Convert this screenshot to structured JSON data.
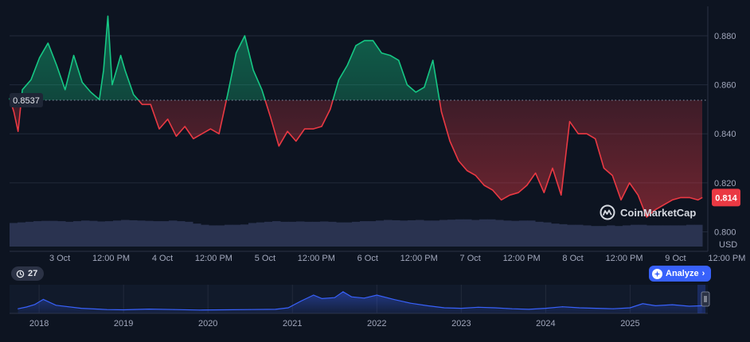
{
  "chart_data": {
    "type": "line",
    "main": {
      "x_ticks": [
        "3 Oct",
        "12:00 PM",
        "4 Oct",
        "12:00 PM",
        "5 Oct",
        "12:00 PM",
        "6 Oct",
        "12:00 PM",
        "7 Oct",
        "12:00 PM",
        "8 Oct",
        "12:00 PM",
        "9 Oct",
        "12:00 PM"
      ],
      "y_ticks": [
        "0.880",
        "0.860",
        "0.840",
        "0.820",
        "0.800"
      ],
      "y_unit": "USD",
      "ylim": [
        0.794,
        0.892
      ],
      "reference_price": 0.8537,
      "reference_label": "0.8537",
      "current_price_label": "0.814",
      "colors": {
        "up": "#16c784",
        "down": "#ea3943",
        "volume": "#2a3350",
        "background": "#0d1421"
      },
      "x": [
        "2 Oct 21:00",
        "2 Oct 22:00",
        "2 Oct 23:00",
        "3 Oct 00:00",
        "3 Oct 02:00",
        "3 Oct 04:00",
        "3 Oct 06:00",
        "3 Oct 08:00",
        "3 Oct 10:00",
        "3 Oct 12:00",
        "3 Oct 14:00",
        "3 Oct 16:00",
        "3 Oct 18:00",
        "3 Oct 19:00",
        "3 Oct 20:00",
        "3 Oct 21:00",
        "3 Oct 22:00",
        "3 Oct 23:00",
        "4 Oct 00:00",
        "4 Oct 02:00",
        "4 Oct 04:00",
        "4 Oct 06:00",
        "4 Oct 08:00",
        "4 Oct 10:00",
        "4 Oct 12:00",
        "4 Oct 14:00",
        "4 Oct 16:00",
        "4 Oct 18:00",
        "4 Oct 20:00",
        "4 Oct 22:00",
        "5 Oct 00:00",
        "5 Oct 02:00",
        "5 Oct 04:00",
        "5 Oct 06:00",
        "5 Oct 08:00",
        "5 Oct 10:00",
        "5 Oct 12:00",
        "5 Oct 14:00",
        "5 Oct 16:00",
        "5 Oct 18:00",
        "5 Oct 20:00",
        "5 Oct 22:00",
        "6 Oct 00:00",
        "6 Oct 02:00",
        "6 Oct 04:00",
        "6 Oct 06:00",
        "6 Oct 08:00",
        "6 Oct 10:00",
        "6 Oct 12:00",
        "6 Oct 14:00",
        "6 Oct 16:00",
        "6 Oct 18:00",
        "6 Oct 20:00",
        "6 Oct 22:00",
        "7 Oct 00:00",
        "7 Oct 02:00",
        "7 Oct 04:00",
        "7 Oct 06:00",
        "7 Oct 08:00",
        "7 Oct 10:00",
        "7 Oct 12:00",
        "7 Oct 14:00",
        "7 Oct 16:00",
        "7 Oct 18:00",
        "7 Oct 20:00",
        "7 Oct 22:00",
        "8 Oct 00:00",
        "8 Oct 02:00",
        "8 Oct 04:00",
        "8 Oct 06:00",
        "8 Oct 08:00",
        "8 Oct 10:00",
        "8 Oct 12:00",
        "8 Oct 14:00",
        "8 Oct 16:00",
        "8 Oct 18:00",
        "8 Oct 20:00",
        "8 Oct 22:00",
        "9 Oct 00:00",
        "9 Oct 02:00",
        "9 Oct 04:00",
        "9 Oct 06:00",
        "9 Oct 08:00",
        "9 Oct 10:00",
        "9 Oct 12:00",
        "9 Oct 14:00",
        "9 Oct 15:00"
      ],
      "y": [
        0.8545,
        0.849,
        0.841,
        0.858,
        0.862,
        0.871,
        0.877,
        0.868,
        0.858,
        0.872,
        0.861,
        0.857,
        0.854,
        0.866,
        0.888,
        0.86,
        0.866,
        0.872,
        0.866,
        0.856,
        0.852,
        0.852,
        0.842,
        0.846,
        0.839,
        0.843,
        0.838,
        0.84,
        0.842,
        0.84,
        0.856,
        0.873,
        0.88,
        0.866,
        0.858,
        0.847,
        0.835,
        0.841,
        0.837,
        0.842,
        0.842,
        0.843,
        0.85,
        0.862,
        0.868,
        0.876,
        0.878,
        0.878,
        0.873,
        0.872,
        0.87,
        0.86,
        0.857,
        0.859,
        0.87,
        0.849,
        0.837,
        0.829,
        0.825,
        0.823,
        0.819,
        0.817,
        0.813,
        0.815,
        0.816,
        0.819,
        0.824,
        0.816,
        0.826,
        0.815,
        0.845,
        0.84,
        0.84,
        0.838,
        0.826,
        0.823,
        0.813,
        0.82,
        0.815,
        0.806,
        0.809,
        0.811,
        0.813,
        0.814,
        0.814,
        0.813,
        0.814
      ],
      "volume": [
        0.78,
        0.8,
        0.82,
        0.84,
        0.85,
        0.85,
        0.84,
        0.82,
        0.84,
        0.86,
        0.85,
        0.83,
        0.84,
        0.86,
        0.88,
        0.87,
        0.86,
        0.85,
        0.84,
        0.84,
        0.86,
        0.84,
        0.82,
        0.76,
        0.72,
        0.7,
        0.7,
        0.72,
        0.72,
        0.73,
        0.78,
        0.8,
        0.82,
        0.84,
        0.82,
        0.82,
        0.83,
        0.82,
        0.82,
        0.83,
        0.82,
        0.8,
        0.8,
        0.82,
        0.84,
        0.84,
        0.86,
        0.88,
        0.87,
        0.86,
        0.87,
        0.88,
        0.86,
        0.86,
        0.88,
        0.89,
        0.9,
        0.9,
        0.88,
        0.9,
        0.9,
        0.88,
        0.86,
        0.85,
        0.86,
        0.86,
        0.82,
        0.8,
        0.76,
        0.74,
        0.72,
        0.72,
        0.7,
        0.68,
        0.68,
        0.7,
        0.68,
        0.7,
        0.72,
        0.72,
        0.7,
        0.7,
        0.7,
        0.7,
        0.7,
        0.72,
        0.72
      ]
    },
    "navigator": {
      "x_ticks": [
        "2018",
        "2019",
        "2020",
        "2021",
        "2022",
        "2023",
        "2024",
        "2025"
      ],
      "x": [
        2017.75,
        2017.85,
        2017.95,
        2018.05,
        2018.2,
        2018.5,
        2018.8,
        2019.0,
        2019.3,
        2019.6,
        2019.9,
        2020.2,
        2020.5,
        2020.8,
        2020.95,
        2021.1,
        2021.25,
        2021.35,
        2021.5,
        2021.6,
        2021.7,
        2021.85,
        2022.0,
        2022.2,
        2022.4,
        2022.6,
        2022.8,
        2023.0,
        2023.2,
        2023.4,
        2023.6,
        2023.8,
        2024.0,
        2024.2,
        2024.4,
        2024.6,
        2024.8,
        2025.0,
        2025.15,
        2025.3,
        2025.5,
        2025.7,
        2025.85
      ],
      "y": [
        0.18,
        0.25,
        0.35,
        0.55,
        0.32,
        0.2,
        0.15,
        0.14,
        0.17,
        0.15,
        0.13,
        0.14,
        0.15,
        0.16,
        0.22,
        0.48,
        0.72,
        0.58,
        0.62,
        0.85,
        0.65,
        0.6,
        0.72,
        0.55,
        0.4,
        0.3,
        0.22,
        0.2,
        0.24,
        0.22,
        0.18,
        0.16,
        0.2,
        0.26,
        0.22,
        0.2,
        0.18,
        0.22,
        0.38,
        0.3,
        0.34,
        0.28,
        0.3
      ]
    }
  },
  "brand": {
    "name": "CoinMarketCap",
    "logo_icon": "coinmarketcap-logo-icon"
  },
  "controls": {
    "badge": {
      "value": "27",
      "icon": "history-clock-icon"
    },
    "analyze": {
      "label": "Analyze",
      "icon": "ai-sparkle-icon",
      "chevron": "›"
    },
    "navigator_handle_icon": "drag-handle-icon"
  }
}
